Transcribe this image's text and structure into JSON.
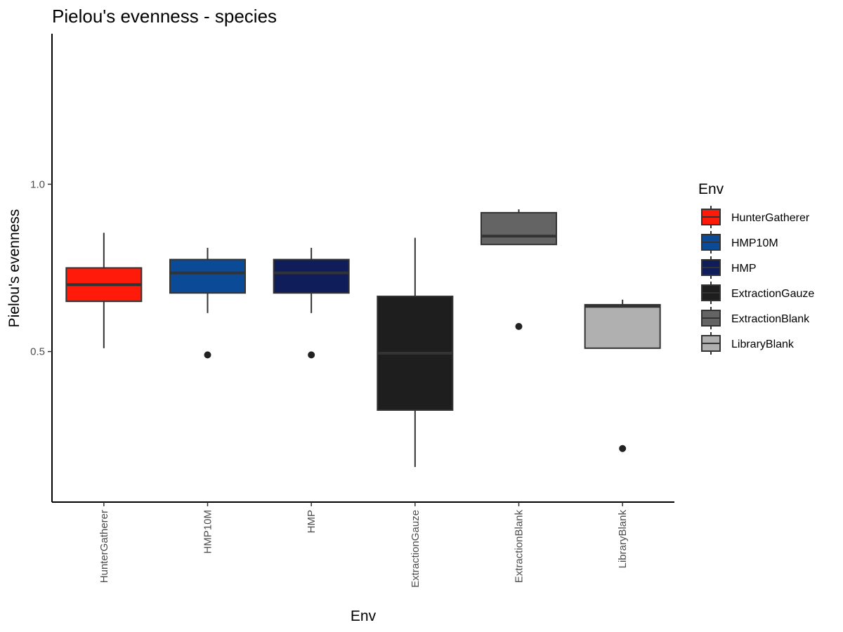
{
  "chart_data": {
    "type": "boxplot",
    "title": "Pielou's evenness - species",
    "xlabel": "Env",
    "ylabel": "Pielou's evenness",
    "ylim": [
      0.05,
      1.45
    ],
    "yticks": [
      0.5,
      1.0
    ],
    "ytick_labels": [
      "0.5",
      "1.0"
    ],
    "grid": false,
    "legend": {
      "title": "Env",
      "placement": "right",
      "entries": [
        "HunterGatherer",
        "HMP10M",
        "HMP",
        "ExtractionGauze",
        "ExtractionBlank",
        "LibraryBlank"
      ]
    },
    "categories": [
      "HunterGatherer",
      "HMP10M",
      "HMP",
      "ExtractionGauze",
      "ExtractionBlank",
      "LibraryBlank"
    ],
    "boxes": [
      {
        "category": "HunterGatherer",
        "whisker_low": 0.51,
        "q1": 0.65,
        "median": 0.7,
        "q3": 0.75,
        "whisker_high": 0.855,
        "outliers": [],
        "color": "#ff1a0a"
      },
      {
        "category": "HMP10M",
        "whisker_low": 0.615,
        "q1": 0.675,
        "median": 0.735,
        "q3": 0.775,
        "whisker_high": 0.81,
        "outliers": [
          0.49
        ],
        "color": "#0a4a96"
      },
      {
        "category": "HMP",
        "whisker_low": 0.615,
        "q1": 0.675,
        "median": 0.735,
        "q3": 0.775,
        "whisker_high": 0.81,
        "outliers": [
          0.49
        ],
        "color": "#0f1e5a"
      },
      {
        "category": "ExtractionGauze",
        "whisker_low": 0.155,
        "q1": 0.325,
        "median": 0.495,
        "q3": 0.665,
        "whisker_high": 0.84,
        "outliers": [],
        "color": "#1e1e1e"
      },
      {
        "category": "ExtractionBlank",
        "whisker_low": 0.82,
        "q1": 0.82,
        "median": 0.845,
        "q3": 0.915,
        "whisker_high": 0.925,
        "outliers": [
          0.575
        ],
        "color": "#646464"
      },
      {
        "category": "LibraryBlank",
        "whisker_low": 0.51,
        "q1": 0.51,
        "median": 0.635,
        "q3": 0.64,
        "whisker_high": 0.655,
        "outliers": [
          0.21
        ],
        "color": "#b0b0b0"
      }
    ]
  }
}
